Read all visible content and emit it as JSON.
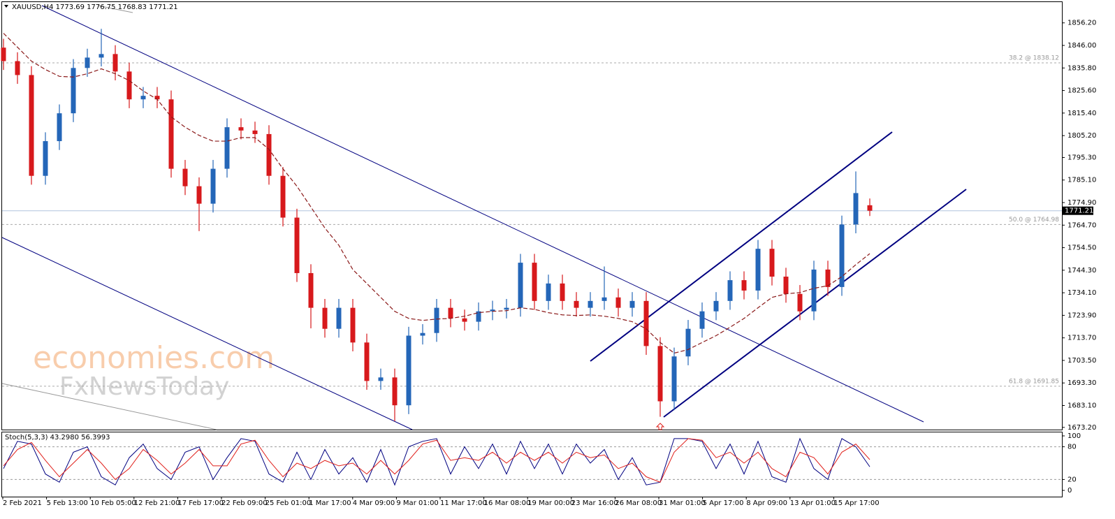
{
  "chart_data": {
    "type": "candlestick",
    "title": "XAUUSD,H4  1773.69 1776.75 1768.83 1771.21",
    "open": [
      1845.0,
      1838.9,
      1832.6,
      1787.0,
      1802.7,
      1815.3,
      1835.8,
      1840.5,
      1842.1,
      1834.2,
      1821.6,
      1823.2,
      1821.6,
      1790.2,
      1782.3,
      1774.4,
      1790.2,
      1809.0,
      1807.5,
      1805.9,
      1787.0,
      1768.1,
      1743.0,
      1727.3,
      1717.8,
      1727.3,
      1711.6,
      1694.2,
      1695.8,
      1683.2,
      1714.7,
      1715.9,
      1727.3,
      1722.5,
      1721.0,
      1725.7,
      1726.5,
      1727.3,
      1747.7,
      1730.4,
      1738.3,
      1730.4,
      1727.3,
      1730.4,
      1732.0,
      1727.3,
      1730.4,
      1710.0,
      1685.0,
      1705.3,
      1717.8,
      1725.7,
      1730.4,
      1739.8,
      1735.1,
      1754.0,
      1741.4,
      1733.6,
      1725.7,
      1744.6,
      1736.7,
      1765.0,
      1773.69
    ],
    "high": [
      1849,
      1842.9,
      1836.6,
      1806.7,
      1819.3,
      1839.8,
      1844.5,
      1853.5,
      1846.1,
      1838.2,
      1827.2,
      1827.2,
      1825.6,
      1794.2,
      1786.3,
      1794.2,
      1813,
      1813,
      1811.5,
      1809.9,
      1791,
      1772.1,
      1747,
      1731.3,
      1731.3,
      1731.3,
      1715.6,
      1699.8,
      1699.8,
      1718.7,
      1719.9,
      1731.3,
      1731.3,
      1726.5,
      1729.7,
      1730.5,
      1731.3,
      1751.7,
      1751.7,
      1742.3,
      1742.3,
      1734.4,
      1734.4,
      1746,
      1736,
      1734.4,
      1734.4,
      1714,
      1709.3,
      1721.8,
      1729.7,
      1734.4,
      1743.8,
      1743.8,
      1758,
      1758,
      1745.4,
      1737.6,
      1748.6,
      1748.6,
      1769,
      1789,
      1776.75
    ],
    "low": [
      1834.9,
      1828.6,
      1783,
      1783,
      1798.7,
      1811.3,
      1831.8,
      1836.5,
      1830.2,
      1817.6,
      1817.6,
      1817.6,
      1786.2,
      1778.3,
      1762,
      1770.4,
      1786.2,
      1803.5,
      1801.9,
      1783,
      1764.1,
      1739,
      1718,
      1713.8,
      1713.8,
      1707.6,
      1690.2,
      1690.2,
      1676,
      1679.2,
      1710.7,
      1711.9,
      1718.5,
      1717,
      1717,
      1721.7,
      1722.5,
      1723.3,
      1726.4,
      1726.4,
      1726.4,
      1723.3,
      1723.3,
      1726.4,
      1723.3,
      1723.3,
      1706,
      1678,
      1681,
      1701.3,
      1713.8,
      1721.7,
      1726.4,
      1731.1,
      1731.1,
      1737.4,
      1729.6,
      1721.7,
      1721.7,
      1732.7,
      1732.7,
      1761,
      1768.83
    ],
    "close": [
      1838.9,
      1832.6,
      1787.0,
      1802.7,
      1815.3,
      1835.8,
      1840.5,
      1842.1,
      1834.2,
      1821.6,
      1823.2,
      1821.6,
      1790.2,
      1782.3,
      1774.4,
      1790.2,
      1809.0,
      1807.5,
      1805.9,
      1787.0,
      1768.1,
      1743.0,
      1727.3,
      1717.8,
      1727.3,
      1711.6,
      1694.2,
      1695.8,
      1683.2,
      1714.7,
      1715.9,
      1727.3,
      1722.5,
      1721.0,
      1725.7,
      1726.5,
      1727.3,
      1747.7,
      1730.4,
      1738.3,
      1730.4,
      1727.3,
      1730.4,
      1732.0,
      1727.3,
      1730.4,
      1710.0,
      1685.0,
      1705.3,
      1717.8,
      1725.7,
      1730.4,
      1739.8,
      1735.1,
      1754.0,
      1741.4,
      1733.6,
      1725.7,
      1744.6,
      1736.7,
      1765.0,
      1779.2,
      1771.21
    ],
    "up_color": "#2466b8",
    "down_color": "#d7191c",
    "ma": {
      "color": "#8b1a1a",
      "values": [
        1851.5,
        1845.2,
        1838.9,
        1835.1,
        1832.0,
        1831.7,
        1833.2,
        1835.4,
        1833.2,
        1830.1,
        1825.4,
        1821.6,
        1813.7,
        1809.0,
        1805.3,
        1802.7,
        1802.7,
        1804.3,
        1804.3,
        1799.0,
        1790.2,
        1782.3,
        1772.9,
        1763.4,
        1755.6,
        1744.6,
        1738.3,
        1732.0,
        1725.7,
        1722.5,
        1721.6,
        1722.2,
        1722.5,
        1723.5,
        1725.1,
        1725.7,
        1726.0,
        1727.3,
        1726.6,
        1725.1,
        1724.1,
        1723.8,
        1724.1,
        1723.5,
        1722.5,
        1721.0,
        1717.8,
        1711.6,
        1706.8,
        1708.4,
        1711.6,
        1714.7,
        1718.5,
        1722.5,
        1727.3,
        1732.0,
        1733.6,
        1734.2,
        1736.1,
        1737.3,
        1741.4,
        1746.8,
        1751.8
      ]
    },
    "ylim": [
      1672.2,
      1865.6
    ],
    "yticks": [
      {
        "value": 1856.2,
        "label": "1856.20"
      },
      {
        "value": 1846.0,
        "label": "1846.00"
      },
      {
        "value": 1835.8,
        "label": "1835.80"
      },
      {
        "value": 1825.6,
        "label": "1825.60"
      },
      {
        "value": 1815.4,
        "label": "1815.40"
      },
      {
        "value": 1805.2,
        "label": "1805.20"
      },
      {
        "value": 1795.3,
        "label": "1795.30"
      },
      {
        "value": 1785.1,
        "label": "1785.10"
      },
      {
        "value": 1774.9,
        "label": "1774.90"
      },
      {
        "value": 1764.7,
        "label": "1764.70"
      },
      {
        "value": 1754.5,
        "label": "1754.50"
      },
      {
        "value": 1744.3,
        "label": "1744.30"
      },
      {
        "value": 1734.1,
        "label": "1734.10"
      },
      {
        "value": 1723.9,
        "label": "1723.90"
      },
      {
        "value": 1713.7,
        "label": "1713.70"
      },
      {
        "value": 1703.5,
        "label": "1703.50"
      },
      {
        "value": 1693.3,
        "label": "1693.30"
      },
      {
        "value": 1683.1,
        "label": "1683.10"
      },
      {
        "value": 1673.2,
        "label": "1673.20"
      }
    ],
    "levels": [
      {
        "value": 1838.12,
        "label": "38.2 @ 1838.12"
      },
      {
        "value": 1764.98,
        "label": "50.0 @ 1764.98"
      },
      {
        "value": 1691.85,
        "label": "61.8 @ 1691.85"
      }
    ],
    "last_price": {
      "value": 1771.21,
      "label": "1771.21"
    },
    "x_labels": [
      "2 Feb 2021",
      "5 Feb 13:00",
      "10 Feb 05:00",
      "12 Feb 21:00",
      "17 Feb 17:00",
      "22 Feb 09:00",
      "25 Feb 01:00",
      "1 Mar 17:00",
      "4 Mar 09:00",
      "9 Mar 01:00",
      "11 Mar 17:00",
      "16 Mar 08:00",
      "19 Mar 00:00",
      "23 Mar 16:00",
      "26 Mar 08:00",
      "31 Mar 01:00",
      "5 Apr 17:00",
      "8 Apr 09:00",
      "13 Apr 01:00",
      "15 Apr 17:00"
    ],
    "watermark": [
      "economies.com",
      "FxNewsToday"
    ],
    "stochastic": {
      "type": "line",
      "title": "Stoch(5,3,3) 43.2980 56.3993",
      "ylim": [
        -11.5,
        106.4
      ],
      "yticks": [
        0,
        20,
        80,
        100
      ],
      "levels": [
        20,
        80
      ],
      "series": [
        {
          "color": "#000080",
          "values": [
            40,
            90,
            85,
            30,
            15,
            70,
            80,
            25,
            10,
            60,
            85,
            40,
            20,
            70,
            80,
            20,
            60,
            95,
            90,
            30,
            15,
            70,
            20,
            75,
            30,
            60,
            15,
            75,
            10,
            80,
            90,
            95,
            30,
            80,
            40,
            85,
            30,
            90,
            40,
            85,
            30,
            85,
            50,
            75,
            20,
            60,
            10,
            15,
            95,
            95,
            90,
            40,
            85,
            30,
            90,
            25,
            15,
            95,
            40,
            20,
            95,
            80,
            43.298
          ]
        },
        {
          "color": "#e0201b",
          "values": [
            45,
            75,
            88,
            55,
            25,
            50,
            75,
            50,
            20,
            40,
            75,
            55,
            30,
            50,
            75,
            45,
            45,
            85,
            92,
            55,
            25,
            50,
            40,
            55,
            45,
            50,
            30,
            55,
            30,
            55,
            85,
            92,
            55,
            60,
            55,
            70,
            50,
            70,
            55,
            70,
            50,
            70,
            60,
            65,
            40,
            50,
            25,
            15,
            70,
            95,
            92,
            60,
            70,
            50,
            70,
            40,
            25,
            70,
            60,
            30,
            70,
            85,
            56.3993
          ]
        }
      ]
    }
  }
}
